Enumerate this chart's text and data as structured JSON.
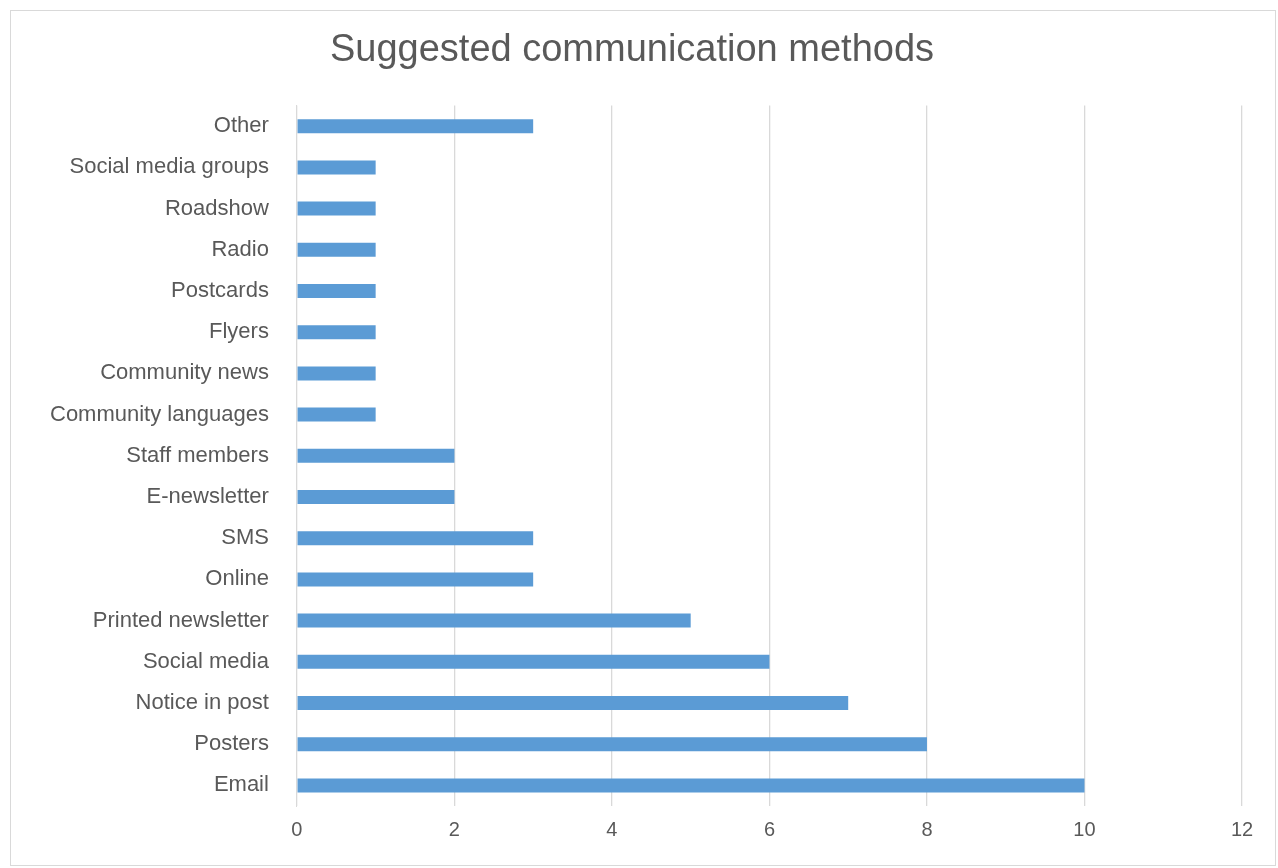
{
  "chart_data": {
    "type": "bar",
    "orientation": "horizontal",
    "title": "Suggested communication methods",
    "categories": [
      "Other",
      "Social media groups",
      "Roadshow",
      "Radio",
      "Postcards",
      "Flyers",
      "Community news",
      "Community languages",
      "Staff members",
      "E-newsletter",
      "SMS",
      "Online",
      "Printed newsletter",
      "Social media",
      "Notice in post",
      "Posters",
      "Email"
    ],
    "values": [
      3,
      1,
      1,
      1,
      1,
      1,
      1,
      1,
      2,
      2,
      3,
      3,
      5,
      6,
      7,
      8,
      10
    ],
    "color": "#5b9bd5",
    "xlim": [
      0,
      12
    ],
    "xticks": [
      0,
      2,
      4,
      6,
      8,
      10,
      12
    ],
    "grid": "x",
    "legend": false
  }
}
